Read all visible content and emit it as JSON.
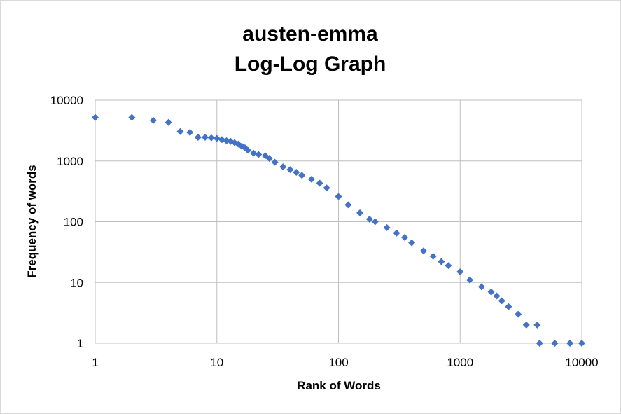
{
  "chart_data": {
    "type": "scatter",
    "title": [
      "austen-emma",
      "Log-Log Graph"
    ],
    "xlabel": "Rank of Words",
    "ylabel": "Frequency of words",
    "xscale": "log",
    "yscale": "log",
    "xlim": [
      1,
      10000
    ],
    "ylim": [
      1,
      10000
    ],
    "x_ticks": [
      "1",
      "10",
      "100",
      "1000",
      "10000"
    ],
    "y_ticks": [
      "1",
      "10",
      "100",
      "1000",
      "10000"
    ],
    "grid": true,
    "legend": "none",
    "marker": "diamond",
    "series": [
      {
        "color": "#4472c4",
        "points": [
          [
            1,
            5200
          ],
          [
            2,
            5200
          ],
          [
            3,
            4650
          ],
          [
            4,
            4300
          ],
          [
            5,
            3050
          ],
          [
            6,
            2950
          ],
          [
            7,
            2450
          ],
          [
            8,
            2450
          ],
          [
            9,
            2400
          ],
          [
            10,
            2350
          ],
          [
            11,
            2250
          ],
          [
            12,
            2150
          ],
          [
            13,
            2100
          ],
          [
            14,
            2000
          ],
          [
            15,
            1900
          ],
          [
            16,
            1750
          ],
          [
            17,
            1650
          ],
          [
            18,
            1500
          ],
          [
            20,
            1350
          ],
          [
            22,
            1280
          ],
          [
            25,
            1220
          ],
          [
            27,
            1100
          ],
          [
            30,
            950
          ],
          [
            35,
            800
          ],
          [
            40,
            720
          ],
          [
            45,
            650
          ],
          [
            50,
            580
          ],
          [
            60,
            500
          ],
          [
            70,
            430
          ],
          [
            80,
            360
          ],
          [
            100,
            260
          ],
          [
            120,
            190
          ],
          [
            150,
            140
          ],
          [
            180,
            110
          ],
          [
            200,
            100
          ],
          [
            250,
            80
          ],
          [
            300,
            65
          ],
          [
            350,
            55
          ],
          [
            400,
            45
          ],
          [
            500,
            33
          ],
          [
            600,
            27
          ],
          [
            700,
            22
          ],
          [
            800,
            19
          ],
          [
            1000,
            15
          ],
          [
            1200,
            11
          ],
          [
            1500,
            8.5
          ],
          [
            1800,
            7
          ],
          [
            2000,
            6
          ],
          [
            2200,
            5
          ],
          [
            2500,
            4
          ],
          [
            3000,
            3
          ],
          [
            3500,
            2
          ],
          [
            4300,
            2
          ],
          [
            4500,
            1
          ],
          [
            6000,
            1
          ],
          [
            8000,
            1
          ],
          [
            10000,
            1
          ]
        ]
      }
    ]
  }
}
